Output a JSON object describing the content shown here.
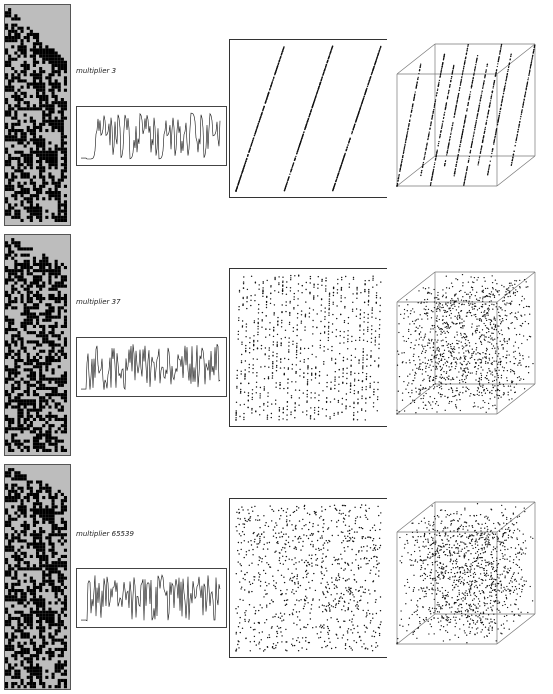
{
  "panels": [
    {
      "caption": "multiplier 3",
      "multiplier": 3
    },
    {
      "caption": "multiplier 37",
      "multiplier": 37
    },
    {
      "caption": "multiplier 65539",
      "multiplier": 65539
    }
  ],
  "colors": {
    "cell_dark": "#000000",
    "cell_light": "#bdbdbd",
    "ink": "#111111",
    "frame": "#555555"
  }
}
